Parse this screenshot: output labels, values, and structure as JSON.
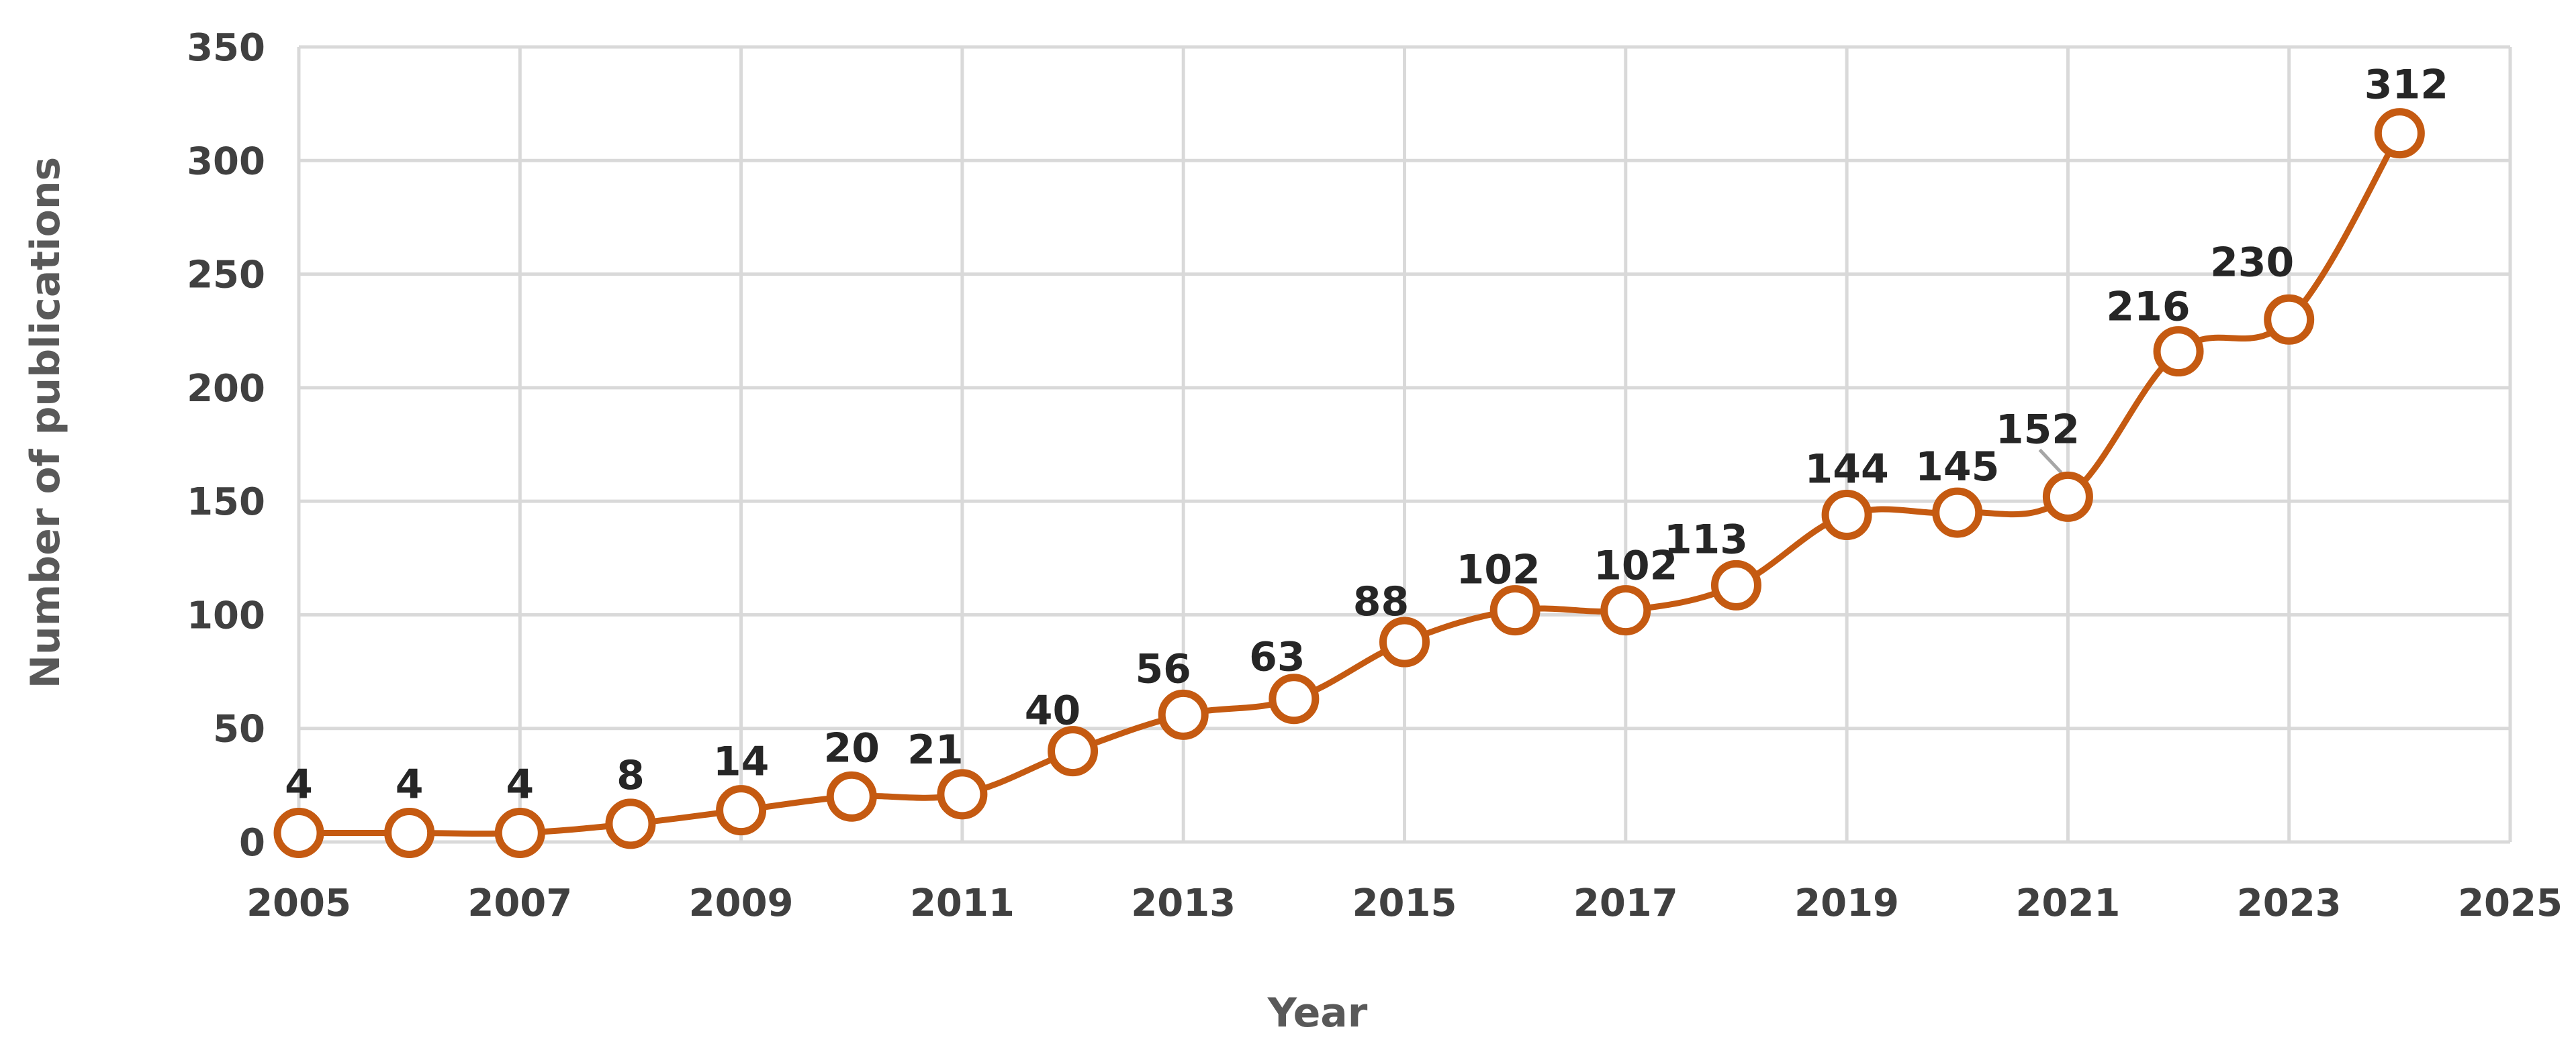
{
  "chart_data": {
    "type": "line",
    "smooth": true,
    "title": "",
    "xlabel": "Year",
    "ylabel": "Number of publications",
    "xlim": [
      2005,
      2025
    ],
    "ylim": [
      0,
      350
    ],
    "x_ticks": [
      "2005",
      "2007",
      "2009",
      "2011",
      "2013",
      "2015",
      "2017",
      "2019",
      "2021",
      "2023",
      "2025"
    ],
    "y_ticks": [
      "0",
      "50",
      "100",
      "150",
      "200",
      "250",
      "300",
      "350"
    ],
    "grid": true,
    "legend": "none",
    "colors": {
      "series": "#c55a11",
      "grid": "#d9d9d9",
      "text": "#404040"
    },
    "series": [
      {
        "x": [
          2005,
          2006,
          2007,
          2008,
          2009,
          2010,
          2011,
          2012,
          2013,
          2014,
          2015,
          2016,
          2017,
          2018,
          2019,
          2020,
          2021,
          2022,
          2023,
          2024
        ],
        "values": [
          4,
          4,
          4,
          8,
          14,
          20,
          21,
          40,
          56,
          63,
          88,
          102,
          102,
          113,
          144,
          145,
          152,
          216,
          230,
          312
        ],
        "data_labels": [
          "4",
          "4",
          "4",
          "8",
          "14",
          "20",
          "21",
          "40",
          "56",
          "63",
          "88",
          "102",
          "102",
          "113",
          "144",
          "145",
          "152",
          "216",
          "230",
          "312"
        ]
      }
    ]
  }
}
